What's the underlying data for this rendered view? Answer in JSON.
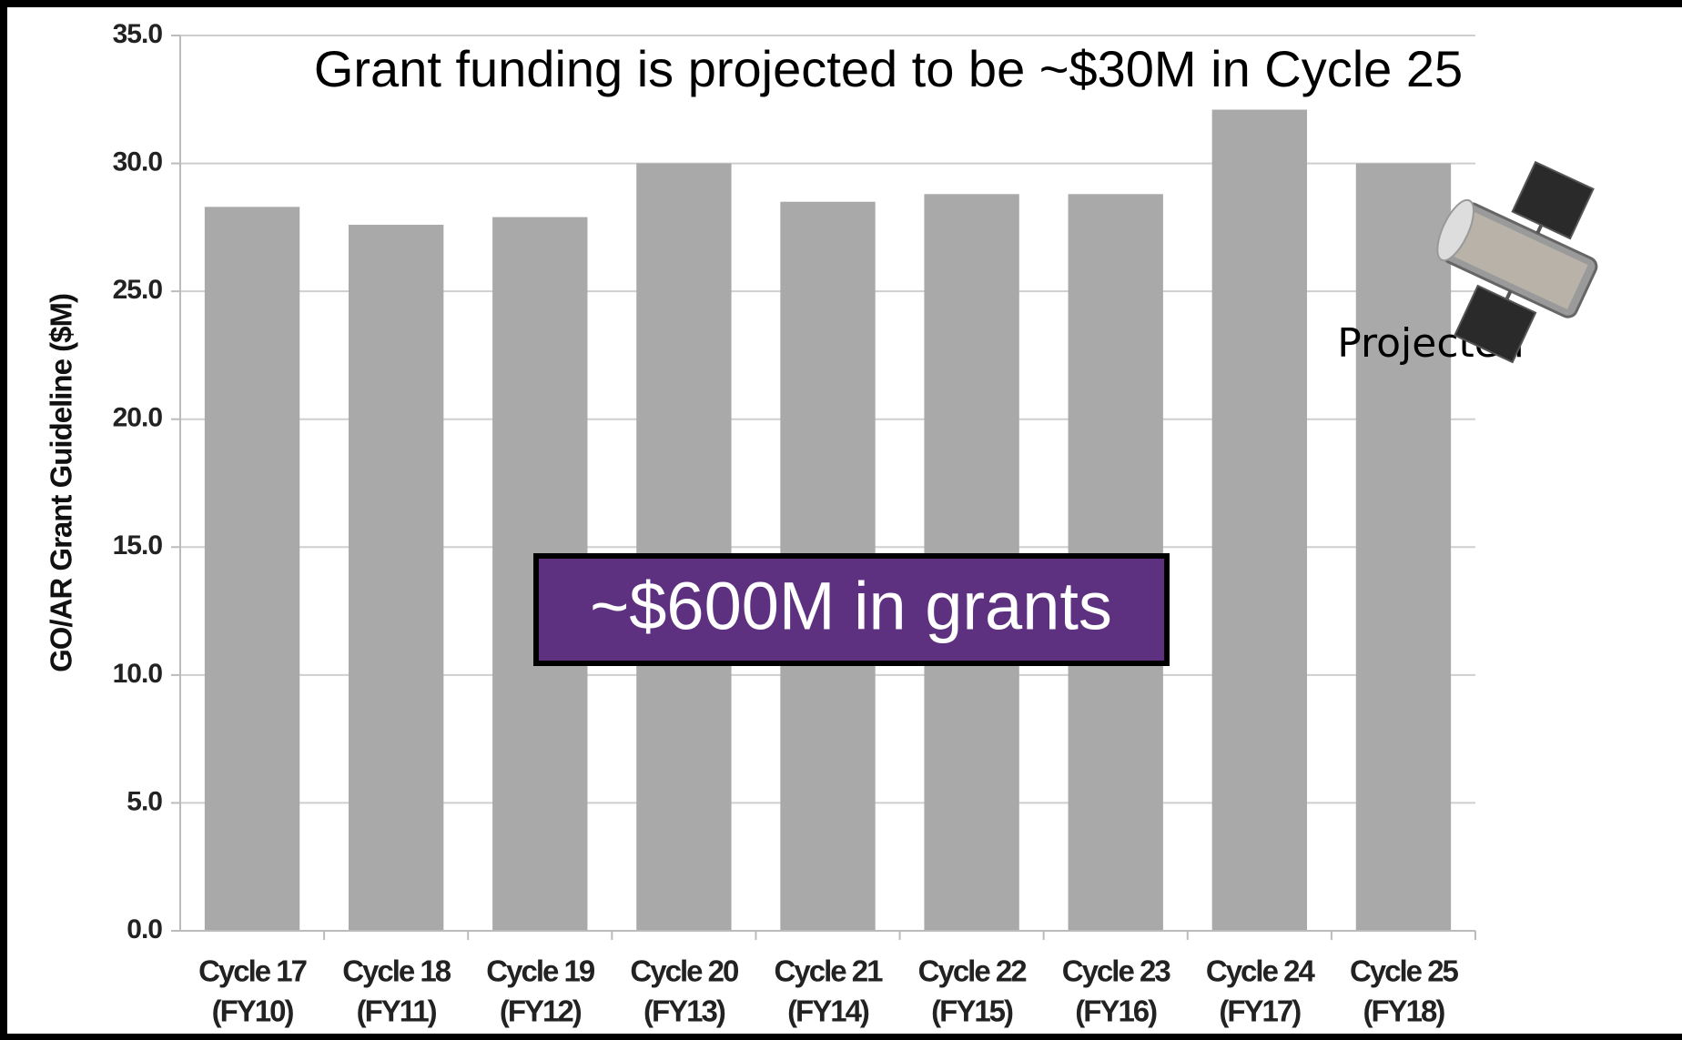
{
  "chart_data": {
    "type": "bar",
    "title": "Grant funding is projected to be ~$30M in Cycle 25",
    "y_label": "GO/AR Grant Guideline ($M)",
    "categories": [
      "Cycle 17",
      "Cycle 18",
      "Cycle 19",
      "Cycle 20",
      "Cycle 21",
      "Cycle 22",
      "Cycle 23",
      "Cycle 24",
      "Cycle 25"
    ],
    "fiscal_years": [
      "(FY10)",
      "(FY11)",
      "(FY12)",
      "(FY13)",
      "(FY14)",
      "(FY15)",
      "(FY16)",
      "(FY17)",
      "(FY18)"
    ],
    "values": [
      28.3,
      27.6,
      27.9,
      30.0,
      28.5,
      28.8,
      28.8,
      32.1,
      30.0
    ],
    "color": "#a9a9a9",
    "ylim": [
      0,
      35
    ],
    "yticks": [
      {
        "value": 0,
        "label": "0.0"
      },
      {
        "value": 5,
        "label": "5.0"
      },
      {
        "value": 10,
        "label": "10.0"
      },
      {
        "value": 15,
        "label": "15.0"
      },
      {
        "value": 20,
        "label": "20.0"
      },
      {
        "value": 25,
        "label": "25.0"
      },
      {
        "value": 30,
        "label": "30.0"
      },
      {
        "value": 35,
        "label": "35.0"
      }
    ],
    "grid": true,
    "annotations": {
      "total": "~$600M in grants",
      "projected": "Projected"
    }
  }
}
